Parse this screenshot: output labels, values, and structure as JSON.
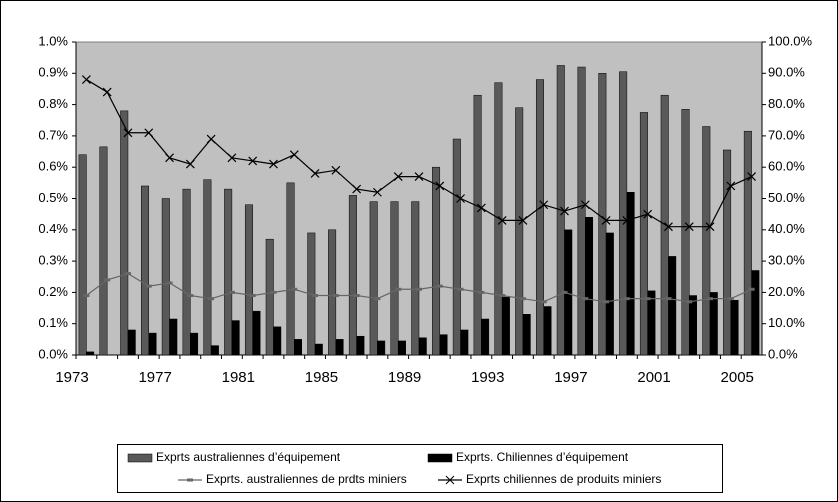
{
  "chart_data": {
    "type": "bar",
    "categories": [
      "1973",
      null,
      null,
      null,
      "1977",
      null,
      null,
      null,
      "1981",
      null,
      null,
      null,
      "1985",
      null,
      null,
      null,
      "1989",
      null,
      null,
      null,
      "1993",
      null,
      null,
      null,
      "1997",
      null,
      null,
      null,
      "2001",
      null,
      null,
      null,
      "2005"
    ],
    "series": [
      {
        "name": "Exprts australiennes d’équipement",
        "type": "bar",
        "color": "#595959",
        "values": [
          0.64,
          0.665,
          0.78,
          0.54,
          0.5,
          0.53,
          0.56,
          0.53,
          0.48,
          0.37,
          0.55,
          0.39,
          0.4,
          0.51,
          0.49,
          0.49,
          0.49,
          0.6,
          0.69,
          0.83,
          0.87,
          0.79,
          0.88,
          0.925,
          0.92,
          0.9,
          0.905,
          0.775,
          0.83,
          0.785,
          0.73,
          0.655,
          0.715
        ]
      },
      {
        "name": "Exprts. Chiliennes d’équipement",
        "type": "bar",
        "color": "#000000",
        "values": [
          0.01,
          0.0,
          0.08,
          0.07,
          0.115,
          0.07,
          0.03,
          0.11,
          0.14,
          0.09,
          0.05,
          0.035,
          0.05,
          0.06,
          0.045,
          0.045,
          0.055,
          0.065,
          0.08,
          0.115,
          0.185,
          0.13,
          0.155,
          0.4,
          0.44,
          0.39,
          0.52,
          0.205,
          0.315,
          0.19,
          0.2,
          0.175,
          0.27
        ]
      },
      {
        "name": "Exprts. australiennes de prdts miniers",
        "type": "line",
        "axis": "y2",
        "color": "#666666",
        "marker": "dash",
        "values": [
          19,
          24,
          26,
          22,
          23,
          19,
          18,
          20,
          19,
          20,
          21,
          19,
          19,
          19,
          18,
          21,
          21,
          22,
          21,
          20,
          19,
          18,
          17,
          20,
          18,
          17,
          18,
          18,
          18,
          17,
          18,
          18,
          21
        ]
      },
      {
        "name": "Exprts chiliennes de produits miniers",
        "type": "line",
        "axis": "y2",
        "color": "#000000",
        "marker": "x",
        "values": [
          88,
          84,
          71,
          71,
          63,
          61,
          69,
          63,
          62,
          61,
          64,
          58,
          59,
          53,
          52,
          57,
          57,
          54,
          50,
          47,
          43,
          43,
          48,
          46,
          48,
          43,
          43,
          45,
          41,
          41,
          41,
          54,
          57
        ]
      }
    ],
    "ylim": [
      0,
      1.0
    ],
    "yticks": [
      {
        "value": 0,
        "label": "0.0%"
      },
      {
        "value": 0.1,
        "label": "0.1%"
      },
      {
        "value": 0.2,
        "label": "0.2%"
      },
      {
        "value": 0.3,
        "label": "0.3%"
      },
      {
        "value": 0.4,
        "label": "0.4%"
      },
      {
        "value": 0.5,
        "label": "0.5%"
      },
      {
        "value": 0.6,
        "label": "0.6%"
      },
      {
        "value": 0.7,
        "label": "0.7%"
      },
      {
        "value": 0.8,
        "label": "0.8%"
      },
      {
        "value": 0.9,
        "label": "0.9%"
      },
      {
        "value": 1.0,
        "label": "1.0%"
      }
    ],
    "y2lim": [
      0,
      100
    ],
    "y2ticks": [
      {
        "value": 0,
        "label": "0.0%"
      },
      {
        "value": 10,
        "label": "10.0%"
      },
      {
        "value": 20,
        "label": "20.0%"
      },
      {
        "value": 30,
        "label": "30.0%"
      },
      {
        "value": 40,
        "label": "40.0%"
      },
      {
        "value": 50,
        "label": "50.0%"
      },
      {
        "value": 60,
        "label": "60.0%"
      },
      {
        "value": 70,
        "label": "70.0%"
      },
      {
        "value": 80,
        "label": "80.0%"
      },
      {
        "value": 90,
        "label": "90.0%"
      },
      {
        "value": 100,
        "label": "100.0%"
      }
    ],
    "plot_background": "#c0c0c0",
    "legend": "bottom"
  }
}
